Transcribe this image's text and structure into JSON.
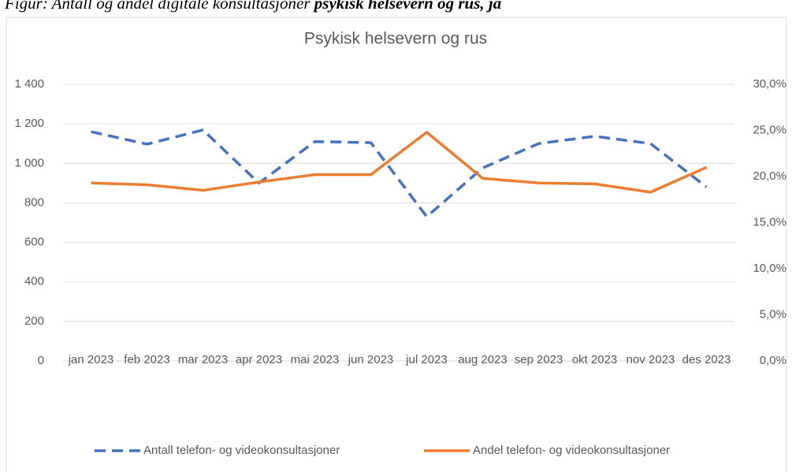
{
  "figure_caption": {
    "text": "Figur: Antall og andel digitale konsultasjoner ",
    "emphasis": "psykisk helsevern og rus, ja"
  },
  "chart_data": {
    "type": "line",
    "title": "Psykisk helsevern og rus",
    "categories": [
      "jan 2023",
      "feb 2023",
      "mar 2023",
      "apr 2023",
      "mai 2023",
      "jun 2023",
      "jul 2023",
      "aug 2023",
      "sep 2023",
      "okt 2023",
      "nov 2023",
      "des 2023"
    ],
    "series": [
      {
        "name": "Antall telefon- og videokonsultasjoner",
        "color": "#4472c4",
        "dashed": true,
        "values": [
          1160,
          1097,
          1169,
          900,
          1110,
          1105,
          730,
          977,
          1100,
          1137,
          1100,
          880
        ]
      },
      {
        "name": "Andel telefon- og videokonsultasjoner",
        "color": "#ed7d31",
        "axis": "y2",
        "values": [
          19.3,
          19.1,
          18.5,
          19.4,
          20.2,
          20.2,
          24.8,
          19.8,
          19.3,
          19.2,
          18.3,
          21.0
        ]
      }
    ],
    "ylim": [
      0,
      1400
    ],
    "yticks": [
      0,
      200,
      400,
      600,
      800,
      {
        "value": 1000,
        "label": "1 000"
      },
      {
        "value": 1200,
        "label": "1 200"
      },
      {
        "value": 1400,
        "label": "1 400"
      }
    ],
    "y2lim": [
      0,
      30
    ],
    "y2ticks": [
      {
        "value": 0,
        "label": "0,0%"
      },
      {
        "value": 5,
        "label": "5,0%"
      },
      {
        "value": 10,
        "label": "10,0%"
      },
      {
        "value": 15,
        "label": "15,0%"
      },
      {
        "value": 20,
        "label": "20,0%"
      },
      {
        "value": 25,
        "label": "25,0%"
      },
      {
        "value": 30,
        "label": "30,0%"
      }
    ],
    "grid": true,
    "legend": "bottom"
  }
}
